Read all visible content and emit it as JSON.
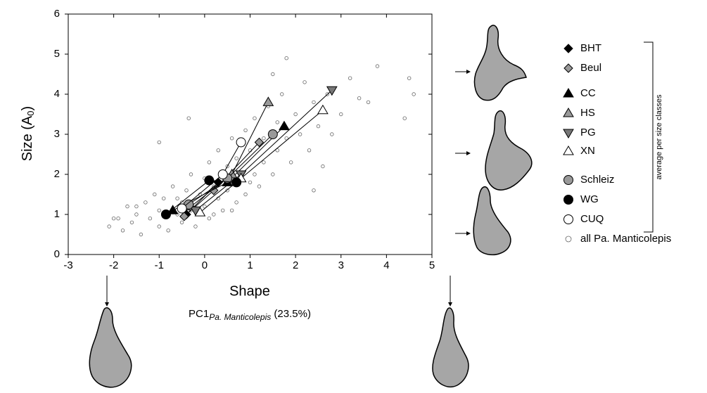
{
  "chart_data": {
    "type": "scatter",
    "xlabel": "Shape",
    "ylabel": {
      "main": "Size (A",
      "sub": "0",
      "end": ")"
    },
    "subtitle": {
      "main": "PC1",
      "sub": "Pa. Manticolepis",
      "end": " (23.5%)"
    },
    "legend_group_label": "average per size classes",
    "xlim": [
      -3,
      5
    ],
    "xticks": [
      -3,
      -2,
      -1,
      0,
      1,
      2,
      3,
      4,
      5
    ],
    "ylim": [
      0,
      6
    ],
    "yticks": [
      0,
      1,
      2,
      3,
      4,
      5,
      6
    ],
    "series": [
      {
        "name": "all Pa. Manticolepis",
        "color": "#ffffff",
        "marker": "dot",
        "x": [
          -2.1,
          -1.9,
          -1.8,
          -1.7,
          -1.6,
          -1.5,
          -1.4,
          -1.3,
          -1.2,
          -1.1,
          -1.0,
          -1.0,
          -0.9,
          -0.8,
          -0.7,
          -0.6,
          -0.5,
          -0.5,
          -0.4,
          -0.3,
          -0.3,
          -0.2,
          -0.1,
          0.0,
          0.0,
          0.1,
          0.1,
          0.2,
          0.3,
          0.3,
          0.4,
          0.5,
          0.5,
          0.6,
          0.7,
          0.7,
          0.8,
          0.9,
          0.9,
          1.0,
          1.1,
          1.1,
          1.2,
          1.3,
          1.3,
          1.4,
          1.5,
          1.6,
          1.6,
          1.7,
          1.8,
          1.9,
          2.0,
          2.1,
          2.2,
          2.3,
          2.4,
          2.4,
          2.5,
          2.7,
          2.8,
          3.0,
          3.2,
          3.4,
          3.6,
          3.8,
          4.4,
          4.5,
          4.6,
          1.8,
          1.5,
          -0.35,
          -1.0,
          2.6,
          0.2,
          -0.6,
          0.6,
          1.0,
          -1.5,
          -2.0
        ],
        "y": [
          0.7,
          0.9,
          0.6,
          1.2,
          0.8,
          1.0,
          0.5,
          1.3,
          0.9,
          1.5,
          0.7,
          1.1,
          1.4,
          0.6,
          1.7,
          1.0,
          1.3,
          0.8,
          1.6,
          2.0,
          1.1,
          0.7,
          1.5,
          1.9,
          1.2,
          2.3,
          0.9,
          1.7,
          1.4,
          2.6,
          1.1,
          2.2,
          1.6,
          2.9,
          1.3,
          2.4,
          1.9,
          3.1,
          1.5,
          2.6,
          2.0,
          3.4,
          1.7,
          2.9,
          2.3,
          3.7,
          2.0,
          3.3,
          2.6,
          4.0,
          2.9,
          2.3,
          3.5,
          3.0,
          4.3,
          2.6,
          3.8,
          1.6,
          3.2,
          4.0,
          3.0,
          3.5,
          4.4,
          3.9,
          3.8,
          4.7,
          3.4,
          4.4,
          4.0,
          4.9,
          4.5,
          3.4,
          2.8,
          2.2,
          1.0,
          1.4,
          1.1,
          1.8,
          1.2,
          0.9
        ]
      },
      {
        "name": "BHT",
        "color": "#000000",
        "marker": "diamond",
        "x": [
          -0.4,
          0.3
        ],
        "y": [
          1.0,
          1.8
        ]
      },
      {
        "name": "Beul",
        "color": "#999999",
        "marker": "diamond",
        "x": [
          -0.45,
          0.2,
          1.2
        ],
        "y": [
          0.95,
          1.6,
          2.8
        ]
      },
      {
        "name": "CC",
        "color": "#000000",
        "marker": "triangle",
        "x": [
          -0.7,
          0.5,
          1.75
        ],
        "y": [
          1.1,
          1.8,
          3.2
        ]
      },
      {
        "name": "HS",
        "color": "#999999",
        "marker": "triangle",
        "x": [
          -0.3,
          0.6,
          1.4
        ],
        "y": [
          1.2,
          2.0,
          3.8
        ]
      },
      {
        "name": "PG",
        "color": "#777777",
        "marker": "triangle-down",
        "x": [
          -0.2,
          0.8,
          2.8
        ],
        "y": [
          1.1,
          2.0,
          4.1
        ]
      },
      {
        "name": "XN",
        "color": "#ffffff",
        "marker": "triangle",
        "x": [
          -0.1,
          0.8,
          2.6
        ],
        "y": [
          1.05,
          1.9,
          3.6
        ]
      },
      {
        "name": "Schleiz",
        "color": "#999999",
        "marker": "circle",
        "x": [
          -0.35,
          0.5,
          1.5
        ],
        "y": [
          1.25,
          1.9,
          3.0
        ]
      },
      {
        "name": "WG",
        "color": "#000000",
        "marker": "circle",
        "x": [
          -0.85,
          0.1,
          0.7
        ],
        "y": [
          1.0,
          1.85,
          1.8
        ]
      },
      {
        "name": "CUQ",
        "color": "#ffffff",
        "marker": "circle",
        "x": [
          -0.5,
          0.4,
          0.8
        ],
        "y": [
          1.15,
          2.0,
          2.8
        ]
      }
    ]
  }
}
